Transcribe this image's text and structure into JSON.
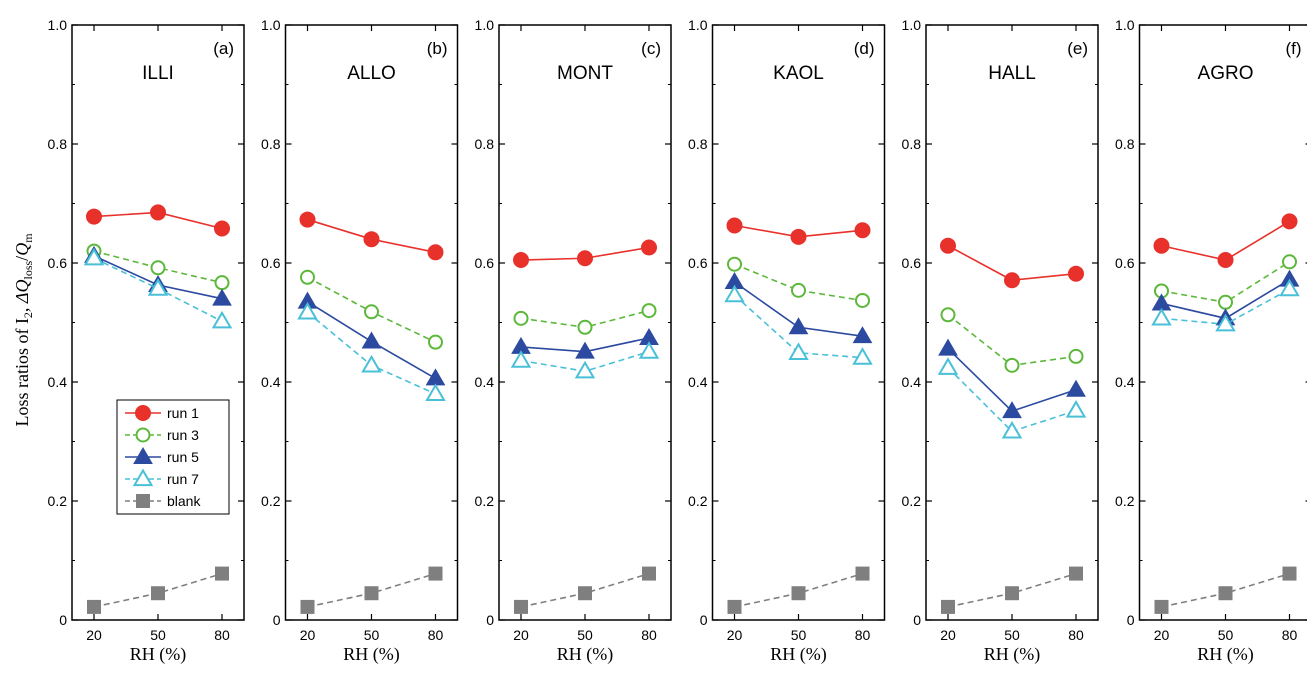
{
  "chart_data": {
    "type": "line",
    "ylabel_parts": {
      "prefix": "Loss ratios of I",
      "sub": "2",
      "mid": ", ",
      "dq": "ΔQ",
      "loss_sub": "loss",
      "slash": "/",
      "q": "Q",
      "m_sub": "m"
    },
    "xlabel": "RH (%)",
    "x": [
      20,
      50,
      80
    ],
    "ylim": [
      0,
      1.0
    ],
    "yticks": [
      "0",
      "0.2",
      "0.4",
      "0.6",
      "0.8",
      "1.0"
    ],
    "ytick_values": [
      0,
      0.2,
      0.4,
      0.6,
      0.8,
      1.0
    ],
    "legend": {
      "placement": "panel-a lower-left",
      "entries": [
        "run 1",
        "run 3",
        "run 5",
        "run 7",
        "blank"
      ]
    },
    "series_styles": [
      {
        "name": "run 1",
        "color": "#e8312b",
        "marker": "filled-circle",
        "dash": "solid"
      },
      {
        "name": "run 3",
        "color": "#5cb83a",
        "marker": "open-circle",
        "dash": "dashed"
      },
      {
        "name": "run 5",
        "color": "#2b4aa0",
        "marker": "filled-triangle",
        "dash": "solid"
      },
      {
        "name": "run 7",
        "color": "#49c0d8",
        "marker": "open-triangle",
        "dash": "dashed"
      },
      {
        "name": "blank",
        "color": "#7f7f7f",
        "marker": "filled-square",
        "dash": "dashed"
      }
    ],
    "panels": [
      {
        "letter": "(a)",
        "name": "ILLI",
        "series": [
          {
            "name": "run 1",
            "values": [
              0.678,
              0.685,
              0.658
            ]
          },
          {
            "name": "run 3",
            "values": [
              0.62,
              0.592,
              0.567
            ]
          },
          {
            "name": "run 5",
            "values": [
              0.612,
              0.563,
              0.54
            ]
          },
          {
            "name": "run 7",
            "values": [
              0.608,
              0.557,
              0.502
            ]
          },
          {
            "name": "blank",
            "values": [
              0.022,
              0.045,
              0.078
            ]
          }
        ]
      },
      {
        "letter": "(b)",
        "name": "ALLO",
        "series": [
          {
            "name": "run 1",
            "values": [
              0.673,
              0.64,
              0.618
            ]
          },
          {
            "name": "run 3",
            "values": [
              0.576,
              0.518,
              0.467
            ]
          },
          {
            "name": "run 5",
            "values": [
              0.535,
              0.468,
              0.406
            ]
          },
          {
            "name": "run 7",
            "values": [
              0.517,
              0.428,
              0.38
            ]
          },
          {
            "name": "blank",
            "values": [
              0.022,
              0.045,
              0.078
            ]
          }
        ]
      },
      {
        "letter": "(c)",
        "name": "MONT",
        "series": [
          {
            "name": "run 1",
            "values": [
              0.605,
              0.608,
              0.626
            ]
          },
          {
            "name": "run 3",
            "values": [
              0.507,
              0.492,
              0.52
            ]
          },
          {
            "name": "run 5",
            "values": [
              0.459,
              0.451,
              0.474
            ]
          },
          {
            "name": "run 7",
            "values": [
              0.436,
              0.418,
              0.451
            ]
          },
          {
            "name": "blank",
            "values": [
              0.022,
              0.045,
              0.078
            ]
          }
        ]
      },
      {
        "letter": "(d)",
        "name": "KAOL",
        "series": [
          {
            "name": "run 1",
            "values": [
              0.663,
              0.644,
              0.655
            ]
          },
          {
            "name": "run 3",
            "values": [
              0.598,
              0.554,
              0.537
            ]
          },
          {
            "name": "run 5",
            "values": [
              0.568,
              0.492,
              0.477
            ]
          },
          {
            "name": "run 7",
            "values": [
              0.546,
              0.449,
              0.441
            ]
          },
          {
            "name": "blank",
            "values": [
              0.022,
              0.045,
              0.078
            ]
          }
        ]
      },
      {
        "letter": "(e)",
        "name": "HALL",
        "series": [
          {
            "name": "run 1",
            "values": [
              0.629,
              0.571,
              0.582
            ]
          },
          {
            "name": "run 3",
            "values": [
              0.513,
              0.428,
              0.443
            ]
          },
          {
            "name": "run 5",
            "values": [
              0.456,
              0.351,
              0.387
            ]
          },
          {
            "name": "run 7",
            "values": [
              0.424,
              0.317,
              0.352
            ]
          },
          {
            "name": "blank",
            "values": [
              0.022,
              0.045,
              0.078
            ]
          }
        ]
      },
      {
        "letter": "(f)",
        "name": "AGRO",
        "series": [
          {
            "name": "run 1",
            "values": [
              0.629,
              0.605,
              0.67
            ]
          },
          {
            "name": "run 3",
            "values": [
              0.553,
              0.534,
              0.602
            ]
          },
          {
            "name": "run 5",
            "values": [
              0.532,
              0.507,
              0.572
            ]
          },
          {
            "name": "run 7",
            "values": [
              0.507,
              0.497,
              0.556
            ]
          },
          {
            "name": "blank",
            "values": [
              0.022,
              0.045,
              0.078
            ]
          }
        ]
      }
    ]
  }
}
